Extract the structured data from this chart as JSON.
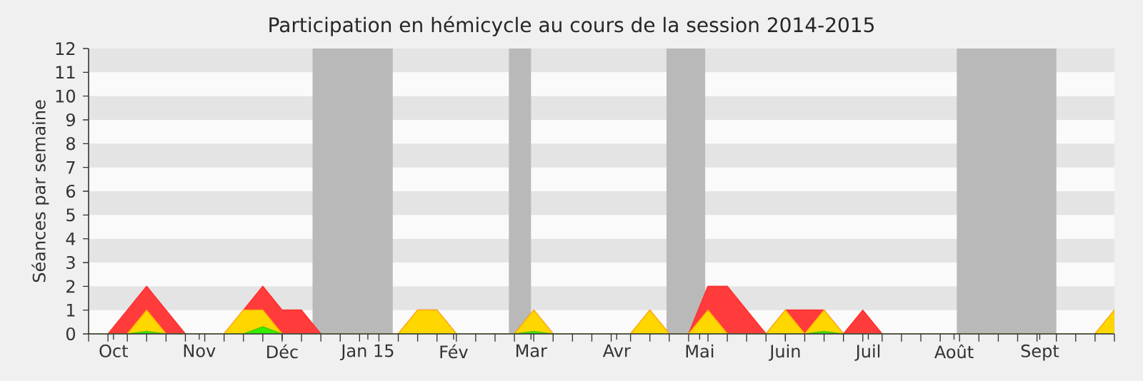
{
  "chart_data": {
    "type": "area",
    "title": "Participation en hémicycle au cours de la session 2014-2015",
    "ylabel": "Séances par semaine",
    "x": [
      "2014-09-22",
      "2014-09-29",
      "2014-10-06",
      "2014-10-13",
      "2014-10-20",
      "2014-10-27",
      "2014-11-03",
      "2014-11-10",
      "2014-11-17",
      "2014-11-24",
      "2014-12-01",
      "2014-12-08",
      "2014-12-15",
      "2014-12-22",
      "2014-12-29",
      "2015-01-05",
      "2015-01-12",
      "2015-01-19",
      "2015-01-26",
      "2015-02-02",
      "2015-02-09",
      "2015-02-16",
      "2015-02-23",
      "2015-03-02",
      "2015-03-09",
      "2015-03-16",
      "2015-03-23",
      "2015-03-30",
      "2015-04-06",
      "2015-04-13",
      "2015-04-20",
      "2015-04-27",
      "2015-05-04",
      "2015-05-11",
      "2015-05-18",
      "2015-05-25",
      "2015-06-01",
      "2015-06-08",
      "2015-06-15",
      "2015-06-22",
      "2015-06-29",
      "2015-07-06",
      "2015-07-13",
      "2015-07-20",
      "2015-07-27",
      "2015-08-03",
      "2015-08-10",
      "2015-08-17",
      "2015-08-24",
      "2015-08-31",
      "2015-09-07",
      "2015-09-14",
      "2015-09-21",
      "2015-09-28"
    ],
    "series": [
      {
        "color": "#ff3b3b",
        "values": [
          0,
          0,
          1,
          2,
          1,
          0,
          0,
          0,
          1,
          2,
          1,
          1,
          0,
          0,
          0,
          0,
          0,
          1,
          1,
          0,
          0,
          0,
          0,
          1,
          0,
          0,
          0,
          0,
          0,
          1,
          0,
          0,
          2,
          2,
          1,
          0,
          1,
          1,
          1,
          0,
          1,
          0,
          0,
          0,
          0,
          0,
          0,
          0,
          0,
          0,
          0,
          0,
          0,
          1
        ]
      },
      {
        "color": "#ffd700",
        "values": [
          0,
          0,
          0,
          1,
          0,
          0,
          0,
          0,
          1,
          1,
          0,
          0,
          0,
          0,
          0,
          0,
          0,
          1,
          1,
          0,
          0,
          0,
          0,
          1,
          0,
          0,
          0,
          0,
          0,
          1,
          0,
          0,
          1,
          0,
          0,
          0,
          1,
          0,
          1,
          0,
          0,
          0,
          0,
          0,
          0,
          0,
          0,
          0,
          0,
          0,
          0,
          0,
          0,
          1
        ]
      },
      {
        "color": "#33ee00",
        "values": [
          0,
          0,
          0,
          0.1,
          0,
          0,
          0,
          0,
          0,
          0.3,
          0,
          0,
          0,
          0,
          0,
          0,
          0,
          0,
          0,
          0,
          0,
          0,
          0,
          0.1,
          0,
          0,
          0,
          0,
          0,
          0,
          0,
          0,
          0,
          0,
          0,
          0,
          0,
          0,
          0.1,
          0,
          0,
          0,
          0,
          0,
          0,
          0,
          0,
          0,
          0,
          0,
          0,
          0,
          0,
          0
        ]
      }
    ],
    "xlim": [
      "2014-09-22",
      "2015-09-28"
    ],
    "xticks": [
      {
        "value": "2014-10-01",
        "label": "Oct"
      },
      {
        "value": "2014-11-01",
        "label": "Nov"
      },
      {
        "value": "2014-12-01",
        "label": "Déc"
      },
      {
        "value": "2015-01-01",
        "label": "Jan 15"
      },
      {
        "value": "2015-02-01",
        "label": "Fév"
      },
      {
        "value": "2015-03-01",
        "label": "Mar"
      },
      {
        "value": "2015-04-01",
        "label": "Avr"
      },
      {
        "value": "2015-05-01",
        "label": "Mai"
      },
      {
        "value": "2015-06-01",
        "label": "Juin"
      },
      {
        "value": "2015-07-01",
        "label": "Juil"
      },
      {
        "value": "2015-08-01",
        "label": "Août"
      },
      {
        "value": "2015-09-01",
        "label": "Sept"
      }
    ],
    "ylim": [
      0,
      12
    ],
    "yticks": [
      0,
      1,
      2,
      3,
      4,
      5,
      6,
      7,
      8,
      9,
      10,
      11,
      12
    ],
    "bands": [
      {
        "axis": "y",
        "from": 1,
        "to": 2,
        "color": "#e4e4e4"
      },
      {
        "axis": "y",
        "from": 3,
        "to": 4,
        "color": "#e4e4e4"
      },
      {
        "axis": "y",
        "from": 5,
        "to": 6,
        "color": "#e4e4e4"
      },
      {
        "axis": "y",
        "from": 7,
        "to": 8,
        "color": "#e4e4e4"
      },
      {
        "axis": "y",
        "from": 9,
        "to": 10,
        "color": "#e4e4e4"
      },
      {
        "axis": "y",
        "from": 11,
        "to": 12,
        "color": "#e4e4e4"
      },
      {
        "axis": "x",
        "from": "2014-12-12",
        "to": "2015-01-10",
        "color": "#b9b9b9"
      },
      {
        "axis": "x",
        "from": "2015-02-21",
        "to": "2015-03-01",
        "color": "#b9b9b9"
      },
      {
        "axis": "x",
        "from": "2015-04-19",
        "to": "2015-05-03",
        "color": "#b9b9b9"
      },
      {
        "axis": "x",
        "from": "2015-08-02",
        "to": "2015-09-07",
        "color": "#b9b9b9"
      }
    ]
  }
}
